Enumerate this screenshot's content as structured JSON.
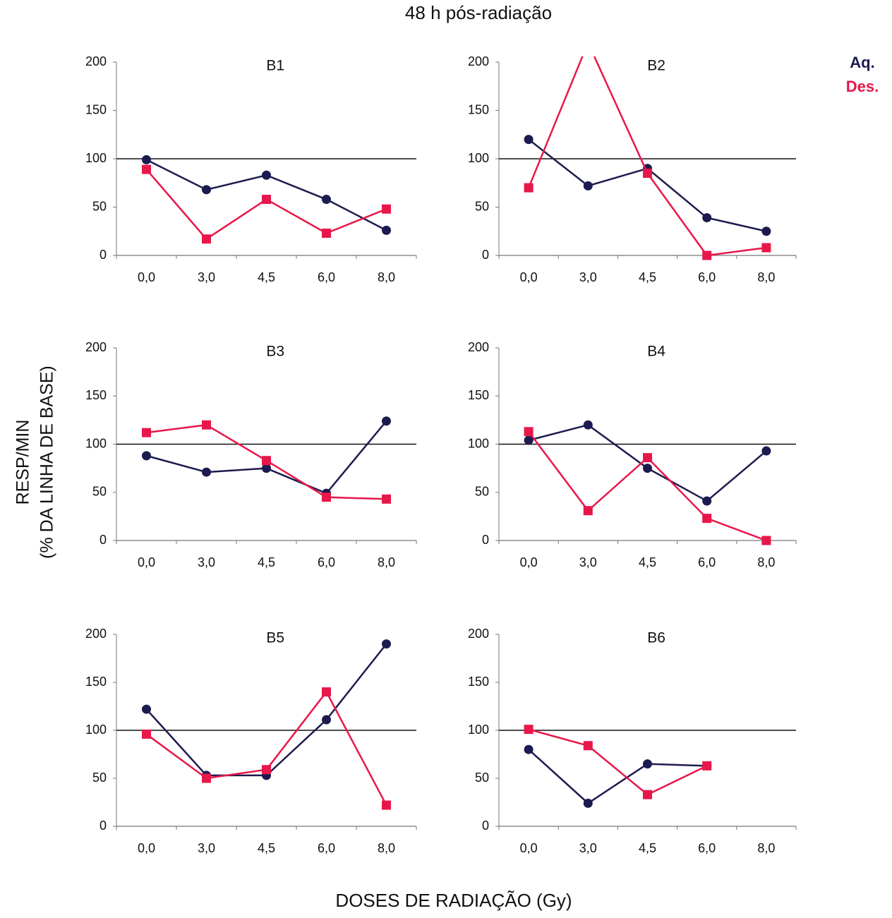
{
  "title": "48 h pós-radiação",
  "ylabel": [
    "RESP/MIN",
    "(% DA LINHA DE BASE)"
  ],
  "xlabel": "DOSES DE RADIAÇÃO (Gy)",
  "chart_data": [
    {
      "type": "line",
      "title": "B1",
      "categories": [
        "0,0",
        "3,0",
        "4,5",
        "6,0",
        "8,0"
      ],
      "series": [
        {
          "name": "Aq.",
          "color": "#1c1b4f",
          "values": [
            99,
            68,
            83,
            58,
            26
          ]
        },
        {
          "name": "Des.",
          "color": "#e8174a",
          "values": [
            89,
            17,
            58,
            23,
            48
          ]
        }
      ],
      "ylim": [
        0,
        200
      ],
      "yticks": [
        0,
        50,
        100,
        150,
        200
      ],
      "reference_line": 100
    },
    {
      "type": "line",
      "title": "B2",
      "categories": [
        "0,0",
        "3,0",
        "4,5",
        "6,0",
        "8,0"
      ],
      "series": [
        {
          "name": "Aq.",
          "color": "#1c1b4f",
          "values": [
            120,
            72,
            90,
            39,
            25
          ]
        },
        {
          "name": "Des.",
          "color": "#e8174a",
          "values": [
            70,
            220,
            85,
            0,
            8
          ]
        }
      ],
      "ylim": [
        0,
        200
      ],
      "yticks": [
        0,
        50,
        100,
        150,
        200
      ],
      "reference_line": 100
    },
    {
      "type": "line",
      "title": "B3",
      "categories": [
        "0,0",
        "3,0",
        "4,5",
        "6,0",
        "8,0"
      ],
      "series": [
        {
          "name": "Aq.",
          "color": "#1c1b4f",
          "values": [
            88,
            71,
            75,
            49,
            124
          ]
        },
        {
          "name": "Des.",
          "color": "#e8174a",
          "values": [
            112,
            120,
            83,
            45,
            43
          ]
        }
      ],
      "ylim": [
        0,
        200
      ],
      "yticks": [
        0,
        50,
        100,
        150,
        200
      ],
      "reference_line": 100
    },
    {
      "type": "line",
      "title": "B4",
      "categories": [
        "0,0",
        "3,0",
        "4,5",
        "6,0",
        "8,0"
      ],
      "series": [
        {
          "name": "Aq.",
          "color": "#1c1b4f",
          "values": [
            104,
            120,
            75,
            41,
            93
          ]
        },
        {
          "name": "Des.",
          "color": "#e8174a",
          "values": [
            113,
            31,
            86,
            23,
            0
          ]
        }
      ],
      "ylim": [
        0,
        200
      ],
      "yticks": [
        0,
        50,
        100,
        150,
        200
      ],
      "reference_line": 100
    },
    {
      "type": "line",
      "title": "B5",
      "categories": [
        "0,0",
        "3,0",
        "4,5",
        "6,0",
        "8,0"
      ],
      "series": [
        {
          "name": "Aq.",
          "color": "#1c1b4f",
          "values": [
            122,
            53,
            53,
            111,
            190
          ]
        },
        {
          "name": "Des.",
          "color": "#e8174a",
          "values": [
            96,
            50,
            59,
            140,
            22
          ]
        }
      ],
      "ylim": [
        0,
        200
      ],
      "yticks": [
        0,
        50,
        100,
        150,
        200
      ],
      "reference_line": 100
    },
    {
      "type": "line",
      "title": "B6",
      "categories": [
        "0,0",
        "3,0",
        "4,5",
        "6,0",
        "8,0"
      ],
      "series": [
        {
          "name": "Aq.",
          "color": "#1c1b4f",
          "values": [
            80,
            24,
            65,
            63,
            null
          ]
        },
        {
          "name": "Des.",
          "color": "#e8174a",
          "values": [
            101,
            84,
            33,
            63,
            null
          ]
        }
      ],
      "ylim": [
        0,
        200
      ],
      "yticks": [
        0,
        50,
        100,
        150,
        200
      ],
      "reference_line": 100
    }
  ]
}
